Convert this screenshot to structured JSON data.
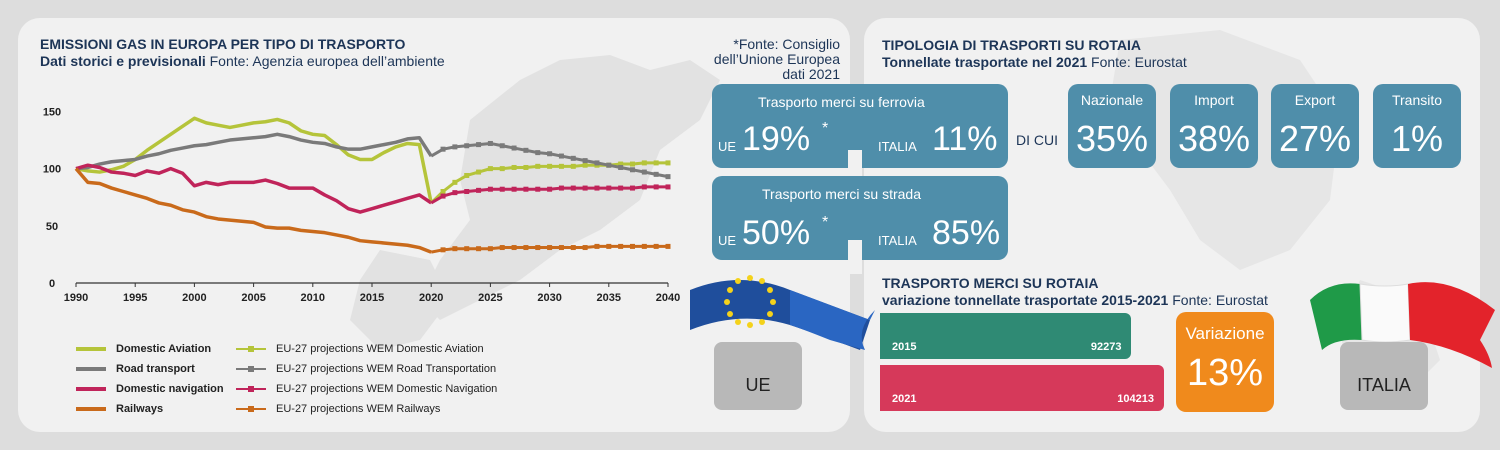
{
  "left": {
    "title": "EMISSIONI GAS IN EUROPA PER TIPO DI TRASPORTO",
    "subtitle_bold": "Dati storici e previsionali",
    "subtitle_rest": " Fonte: Agenzia europea dell’ambiente",
    "note_line1": "*Fonte: Consiglio",
    "note_line2": "dell’Unione Europea",
    "note_line3": "dati 2021"
  },
  "chart_data": {
    "type": "line",
    "title": "EMISSIONI GAS IN EUROPA PER TIPO DI TRASPORTO",
    "subtitle": "Dati storici e previsionali",
    "xlabel": "",
    "ylabel": "",
    "xlim": [
      1990,
      2040
    ],
    "ylim": [
      0,
      160
    ],
    "x_ticks": [
      "1990",
      "1995",
      "2000",
      "2005",
      "2010",
      "2015",
      "2020",
      "2025",
      "2030",
      "2035",
      "2040"
    ],
    "y_ticks": [
      "0",
      "50",
      "100",
      "150"
    ],
    "grid": false,
    "legend_position": "bottom-left",
    "series": [
      {
        "name": "Domestic Aviation",
        "color": "#b5c43a",
        "dashed": false,
        "x": [
          1990,
          1991,
          1992,
          1993,
          1994,
          1995,
          1996,
          1997,
          1998,
          1999,
          2000,
          2001,
          2002,
          2003,
          2004,
          2005,
          2006,
          2007,
          2008,
          2009,
          2010,
          2011,
          2012,
          2013,
          2014,
          2015,
          2016,
          2017,
          2018,
          2019,
          2020
        ],
        "y": [
          100,
          98,
          97,
          99,
          102,
          108,
          116,
          123,
          130,
          137,
          144,
          140,
          138,
          136,
          138,
          140,
          141,
          143,
          140,
          133,
          130,
          129,
          121,
          112,
          108,
          108,
          114,
          119,
          122,
          121,
          70
        ]
      },
      {
        "name": "Road transport",
        "color": "#7a7a7a",
        "dashed": false,
        "x": [
          1990,
          1991,
          1992,
          1993,
          1994,
          1995,
          1996,
          1997,
          1998,
          1999,
          2000,
          2001,
          2002,
          2003,
          2004,
          2005,
          2006,
          2007,
          2008,
          2009,
          2010,
          2011,
          2012,
          2013,
          2014,
          2015,
          2016,
          2017,
          2018,
          2019,
          2020
        ],
        "y": [
          100,
          101,
          104,
          106,
          107,
          108,
          111,
          113,
          116,
          118,
          120,
          121,
          123,
          125,
          126,
          127,
          128,
          130,
          128,
          125,
          123,
          122,
          119,
          117,
          117,
          119,
          121,
          123,
          126,
          127,
          111
        ]
      },
      {
        "name": "Domestic navigation",
        "color": "#c0245a",
        "dashed": false,
        "x": [
          1990,
          1991,
          1992,
          1993,
          1994,
          1995,
          1996,
          1997,
          1998,
          1999,
          2000,
          2001,
          2002,
          2003,
          2004,
          2005,
          2006,
          2007,
          2008,
          2009,
          2010,
          2011,
          2012,
          2013,
          2014,
          2015,
          2016,
          2017,
          2018,
          2019,
          2020
        ],
        "y": [
          100,
          103,
          101,
          97,
          96,
          94,
          98,
          96,
          100,
          96,
          85,
          88,
          86,
          88,
          88,
          88,
          90,
          87,
          83,
          83,
          83,
          77,
          72,
          65,
          62,
          65,
          68,
          71,
          74,
          77,
          70
        ]
      },
      {
        "name": "Railways",
        "color": "#c96a1b",
        "dashed": false,
        "x": [
          1990,
          1991,
          1992,
          1993,
          1994,
          1995,
          1996,
          1997,
          1998,
          1999,
          2000,
          2001,
          2002,
          2003,
          2004,
          2005,
          2006,
          2007,
          2008,
          2009,
          2010,
          2011,
          2012,
          2013,
          2014,
          2015,
          2016,
          2017,
          2018,
          2019,
          2020
        ],
        "y": [
          100,
          88,
          87,
          83,
          80,
          77,
          74,
          70,
          68,
          64,
          62,
          58,
          56,
          55,
          54,
          53,
          49,
          48,
          48,
          46,
          45,
          44,
          42,
          40,
          37,
          36,
          35,
          34,
          33,
          31,
          27
        ]
      },
      {
        "name": "EU-27 projections WEM Domestic Aviation",
        "color": "#b5c43a",
        "dashed": true,
        "x": [
          2020,
          2021,
          2022,
          2023,
          2024,
          2025,
          2026,
          2027,
          2028,
          2029,
          2030,
          2031,
          2032,
          2033,
          2034,
          2035,
          2036,
          2037,
          2038,
          2039,
          2040
        ],
        "y": [
          70,
          80,
          88,
          94,
          97,
          100,
          100,
          101,
          101,
          102,
          102,
          102,
          102,
          103,
          103,
          103,
          104,
          104,
          105,
          105,
          105
        ]
      },
      {
        "name": "EU-27 projections WEM Road Transportation",
        "color": "#7a7a7a",
        "dashed": true,
        "x": [
          2020,
          2021,
          2022,
          2023,
          2024,
          2025,
          2026,
          2027,
          2028,
          2029,
          2030,
          2031,
          2032,
          2033,
          2034,
          2035,
          2036,
          2037,
          2038,
          2039,
          2040
        ],
        "y": [
          111,
          117,
          119,
          120,
          121,
          122,
          120,
          118,
          116,
          114,
          113,
          111,
          109,
          107,
          105,
          103,
          101,
          99,
          97,
          95,
          93
        ]
      },
      {
        "name": "EU-27 projections WEM Domestic Navigation",
        "color": "#c0245a",
        "dashed": true,
        "x": [
          2020,
          2021,
          2022,
          2023,
          2024,
          2025,
          2026,
          2027,
          2028,
          2029,
          2030,
          2031,
          2032,
          2033,
          2034,
          2035,
          2036,
          2037,
          2038,
          2039,
          2040
        ],
        "y": [
          70,
          76,
          79,
          80,
          81,
          82,
          82,
          82,
          82,
          82,
          82,
          83,
          83,
          83,
          83,
          83,
          83,
          83,
          84,
          84,
          84
        ]
      },
      {
        "name": "EU-27 projections WEM Railways",
        "color": "#c96a1b",
        "dashed": true,
        "x": [
          2020,
          2021,
          2022,
          2023,
          2024,
          2025,
          2026,
          2027,
          2028,
          2029,
          2030,
          2031,
          2032,
          2033,
          2034,
          2035,
          2036,
          2037,
          2038,
          2039,
          2040
        ],
        "y": [
          27,
          29,
          30,
          30,
          30,
          30,
          31,
          31,
          31,
          31,
          31,
          31,
          31,
          31,
          32,
          32,
          32,
          32,
          32,
          32,
          32
        ]
      }
    ]
  },
  "ue_stats": {
    "ferrovia_label": "Trasporto merci su ferrovia",
    "ferrovia_ue_label": "UE",
    "ferrovia_ue_value": "19%",
    "ferrovia_star": "*",
    "ferrovia_it_label": "ITALIA",
    "ferrovia_it_value": "11%",
    "strada_label": "Trasporto merci su strada",
    "strada_ue_label": "UE",
    "strada_ue_value": "50%",
    "strada_star": "*",
    "strada_it_label": "ITALIA",
    "strada_it_value": "85%",
    "di_cui": "DI CUI",
    "ue_tag": "UE",
    "italia_tag": "ITALIA"
  },
  "right": {
    "title": "TIPOLOGIA DI TRASPORTI SU ROTAIA",
    "subtitle_bold": "Tonnellate trasportate nel 2021",
    "subtitle_rest": " Fonte: Eurostat",
    "types": [
      {
        "label": "Nazionale",
        "value": "35%"
      },
      {
        "label": "Import",
        "value": "38%"
      },
      {
        "label": "Export",
        "value": "27%"
      },
      {
        "label": "Transito",
        "value": "1%"
      }
    ],
    "title2": "TRASPORTO MERCI SU ROTAIA",
    "subtitle2_bold": "variazione tonnellate trasportate 2015-2021",
    "subtitle2_rest": " Fonte: Eurostat",
    "bars": [
      {
        "year": "2015",
        "value_label": "92273",
        "value": 92273,
        "color": "#2f8a74"
      },
      {
        "year": "2021",
        "value_label": "104213",
        "value": 104213,
        "color": "#d6395a"
      }
    ],
    "variazione_label": "Variazione",
    "variazione_value": "13%",
    "variazione_color": "#f08a1c"
  }
}
